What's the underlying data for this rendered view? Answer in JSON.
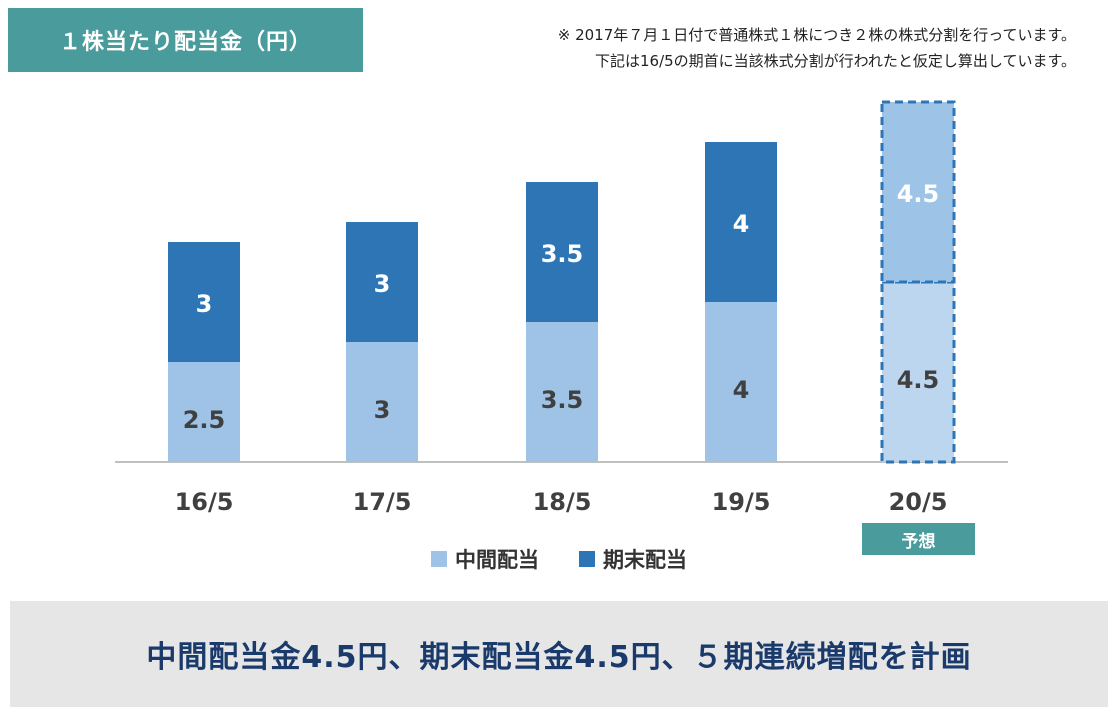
{
  "header": {
    "title": "１株当たり配当金（円）",
    "note_line1": "※ 2017年７月１日付で普通株式１株につき２株の株式分割を行っています。",
    "note_line2": "下記は16/5の期首に当該株式分割が行われたと仮定し算出しています。"
  },
  "forecast_label": "予想",
  "summary": "中間配当金4.5円、期末配当金4.5円、５期連続増配を計画",
  "colors": {
    "interim": "#9ec3e6",
    "interim_forecast": "#bcd6ef",
    "year_end": "#2e75b6",
    "year_end_forecast": "#9dc3e6",
    "badge": "#4a9b9b"
  },
  "chart_data": {
    "type": "bar",
    "stacked": true,
    "categories": [
      "16/5",
      "17/5",
      "18/5",
      "19/5",
      "20/5"
    ],
    "series": [
      {
        "name": "中間配当",
        "values": [
          2.5,
          3,
          3.5,
          4,
          4.5
        ]
      },
      {
        "name": "期末配当",
        "values": [
          3,
          3,
          3.5,
          4,
          4.5
        ]
      }
    ],
    "value_labels": [
      [
        "2.5",
        "3",
        "3.5",
        "4",
        "4.5"
      ],
      [
        "3",
        "3",
        "3.5",
        "4",
        "4.5"
      ]
    ],
    "forecast_category": "20/5",
    "ylim": [
      0,
      9
    ],
    "grid": false,
    "legend_position": "bottom"
  }
}
